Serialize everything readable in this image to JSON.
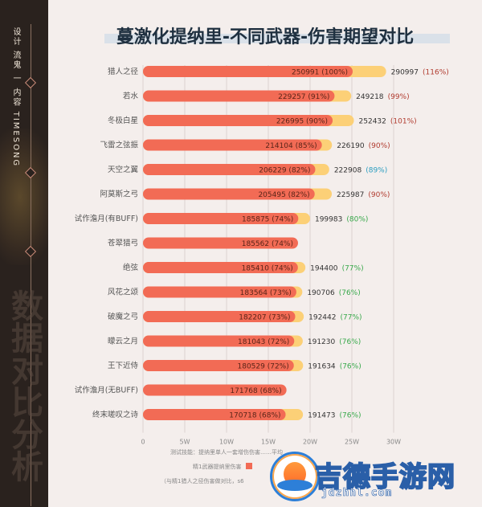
{
  "sidebar": {
    "vertical_text": "设计 流鬼 一 内容 TIMESONG",
    "watermark": "数据对比分析"
  },
  "title": "蔓激化提纳里-不同武器-伤害期望对比",
  "notes": {
    "line1": "测试技能：提纳里单人一套增伤伤害……平均",
    "legend1": "精1武器提纳里伤害",
    "line3": "（与精1猎人之径伤害做对比，s6"
  },
  "brand": {
    "name": "吉德手游网",
    "url": "jdzhnl.com"
  },
  "colors": {
    "base_bar": "#f26b55",
    "extra_bar": "#fcd077",
    "pct_red": "#b03a2e",
    "pct_blue": "#2a9dc0",
    "pct_green": "#37a84a"
  },
  "chart_data": {
    "type": "bar",
    "orientation": "horizontal",
    "xlim": [
      0,
      300000
    ],
    "x_ticks": [
      "0",
      "5W",
      "10W",
      "15W",
      "20W",
      "25W",
      "30W"
    ],
    "categories": [
      "猎人之径",
      "若水",
      "冬极白星",
      "飞雷之弦振",
      "天空之翼",
      "阿莫斯之弓",
      "试作澹月(有BUFF)",
      "苍翠猎弓",
      "绝弦",
      "风花之颂",
      "破魔之弓",
      "曚云之月",
      "王下近侍",
      "试作澹月(无BUFF)",
      "终末嗟叹之诗"
    ],
    "series": [
      {
        "values": [
          250991,
          229257,
          226995,
          214104,
          206229,
          205495,
          185875,
          185562,
          185410,
          183564,
          182207,
          181043,
          180529,
          171768,
          170718
        ],
        "labels": [
          "250991 (100%)",
          "229257 (91%)",
          "226995 (90%)",
          "214104 (85%)",
          "206229 (82%)",
          "205495 (82%)",
          "185875 (74%)",
          "185562 (74%)",
          "185410 (74%)",
          "183564 (73%)",
          "182207 (73%)",
          "181043 (72%)",
          "180529 (72%)",
          "171768 (68%)",
          "170718 (68%)"
        ]
      },
      {
        "values": [
          290997,
          249218,
          252432,
          226190,
          222908,
          225987,
          199983,
          null,
          194400,
          190706,
          192442,
          191230,
          191634,
          null,
          191473
        ],
        "labels": [
          "290997",
          "249218",
          "252432",
          "226190",
          "222908",
          "225987",
          "199983",
          "",
          "194400",
          "190706",
          "192442",
          "191230",
          "191634",
          "",
          "191473"
        ],
        "pct_labels": [
          "(116%)",
          "(99%)",
          "(101%)",
          "(90%)",
          "(89%)",
          "(90%)",
          "(80%)",
          "",
          "(77%)",
          "(76%)",
          "(77%)",
          "(76%)",
          "(76%)",
          "",
          "(76%)"
        ],
        "pct_colors": [
          "red",
          "red",
          "red",
          "red",
          "blue",
          "red",
          "green",
          "",
          "green",
          "green",
          "green",
          "green",
          "green",
          "",
          "green"
        ]
      }
    ],
    "grid": true
  }
}
